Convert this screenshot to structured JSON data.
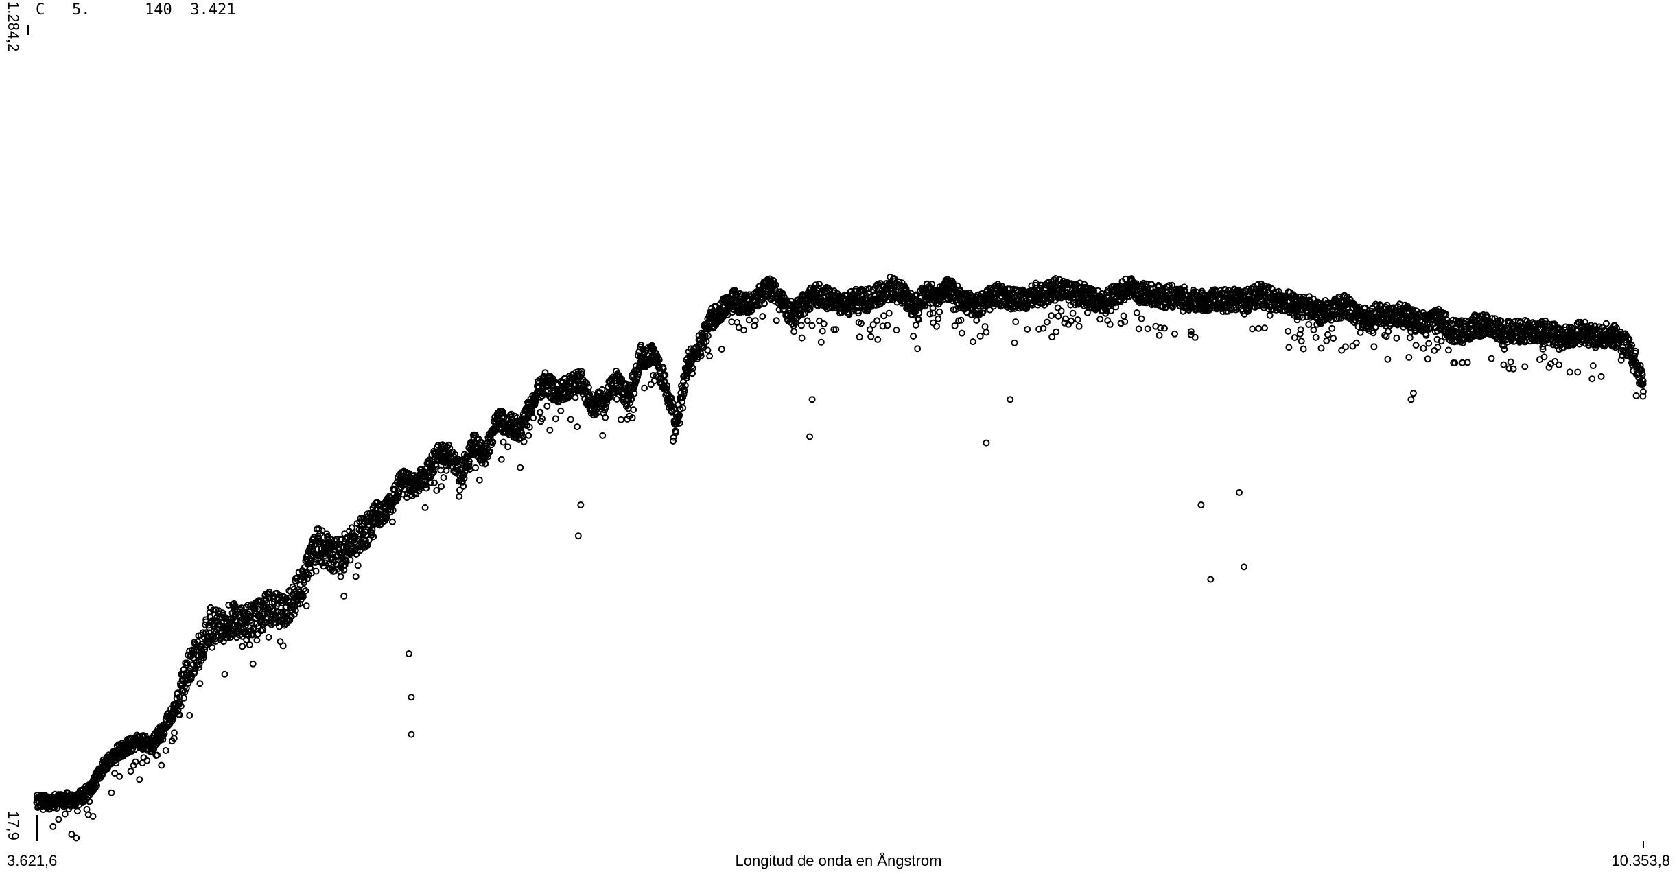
{
  "header": {
    "class_code": "C",
    "val1": "5.",
    "val2": "140",
    "val3": "3.421"
  },
  "chart_data": {
    "type": "scatter",
    "xlabel": "Longitud de onda en Ångstrom",
    "ylabel": "",
    "xlim": [
      3621.6,
      10353.8
    ],
    "ylim": [
      17.9,
      1284.2
    ],
    "x_tick_labels": [
      "3.621,6",
      "10.353,8"
    ],
    "y_tick_labels": [
      "17,9",
      "1.284,2"
    ],
    "marker": "hollow-circle",
    "color": "#000000",
    "series": [
      {
        "x": [
          3620,
          3700,
          3750,
          3800,
          3850,
          3900,
          3950,
          4000,
          4050,
          4100,
          4150,
          4200,
          4250,
          4300,
          4350,
          4400,
          4450,
          4500,
          4550,
          4600,
          4650,
          4700,
          4750,
          4800,
          4850,
          4900,
          4950,
          5000,
          5050,
          5100,
          5150,
          5200,
          5250,
          5300,
          5350,
          5400,
          5450,
          5500,
          5550,
          5600,
          5650,
          5700,
          5750,
          5800,
          5850,
          5900,
          5950,
          6000,
          6050,
          6100,
          6150,
          6200,
          6250,
          6300,
          6350,
          6400,
          6450,
          6500,
          6550,
          6600,
          6650,
          6700,
          6750,
          6800,
          6850,
          6900,
          6950,
          7000,
          7050,
          7100,
          7150,
          7200,
          7250,
          7300,
          7350,
          7400,
          7450,
          7500,
          7550,
          7600,
          7650,
          7700,
          7750,
          7800,
          7850,
          7900,
          7950,
          8000,
          8050,
          8100,
          8150,
          8200,
          8250,
          8300,
          8350,
          8400,
          8450,
          8500,
          8550,
          8600,
          8650,
          8700,
          8750,
          8800,
          8850,
          8900,
          8950,
          9000,
          9050,
          9100,
          9150,
          9200,
          9250,
          9300,
          9350,
          9400,
          9450,
          9500,
          9550,
          9600,
          9650,
          9700,
          9750,
          9800,
          9850,
          9900,
          9950,
          10000,
          10050,
          10100,
          10150,
          10200,
          10250,
          10300,
          10353
        ],
        "y": [
          40,
          42,
          45,
          48,
          62,
          100,
          120,
          130,
          140,
          132,
          160,
          190,
          250,
          285,
          330,
          322,
          340,
          330,
          340,
          355,
          345,
          370,
          410,
          460,
          440,
          440,
          465,
          480,
          500,
          520,
          560,
          550,
          570,
          600,
          600,
          570,
          620,
          600,
          660,
          650,
          640,
          690,
          720,
          700,
          710,
          720,
          680,
          690,
          720,
          690,
          760,
          760,
          720,
          650,
          750,
          780,
          820,
          840,
          850,
          840,
          860,
          870,
          840,
          830,
          850,
          860,
          850,
          840,
          850,
          850,
          860,
          870,
          860,
          840,
          860,
          860,
          870,
          850,
          840,
          850,
          860,
          850,
          850,
          860,
          860,
          870,
          860,
          860,
          850,
          850,
          860,
          870,
          860,
          860,
          855,
          860,
          850,
          850,
          850,
          850,
          850,
          850,
          860,
          850,
          850,
          840,
          840,
          830,
          835,
          840,
          830,
          820,
          830,
          820,
          830,
          815,
          810,
          820,
          800,
          800,
          810,
          810,
          800,
          800,
          800,
          800,
          800,
          790,
          790,
          800,
          790,
          795,
          790,
          770,
          720
        ],
        "dips_x": [
          5190,
          5190,
          5180,
          5890,
          5900,
          6860,
          6870,
          7600,
          7700,
          8500,
          8540,
          8660,
          8680,
          9380,
          9390,
          10350
        ],
        "dips_y": [
          150,
          210,
          280,
          470,
          520,
          630,
          690,
          620,
          690,
          520,
          400,
          540,
          420,
          690,
          700,
          730
        ]
      }
    ]
  }
}
